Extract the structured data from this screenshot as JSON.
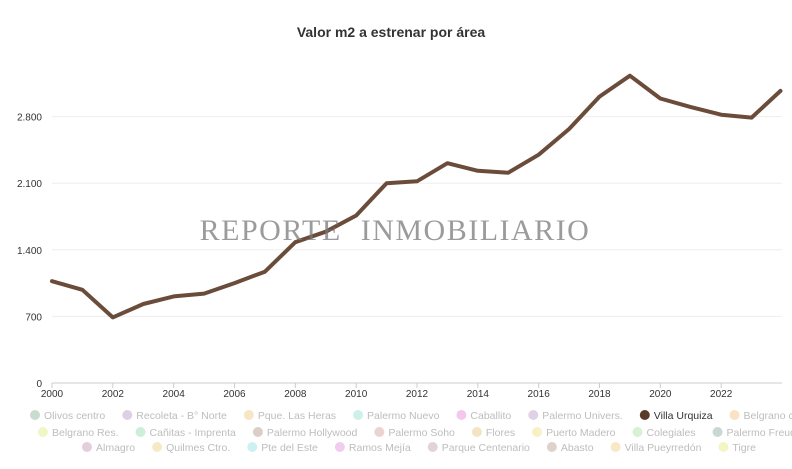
{
  "watermark": {
    "word1": "REPORTE",
    "word2": "INMOBILIARIO"
  },
  "chart_data": {
    "type": "line",
    "title": "Valor m2 a estrenar por área",
    "xlabel": "",
    "ylabel": "",
    "x": [
      2000,
      2001,
      2002,
      2003,
      2004,
      2005,
      2006,
      2007,
      2008,
      2009,
      2010,
      2011,
      2012,
      2013,
      2014,
      2015,
      2016,
      2017,
      2018,
      2019,
      2020,
      2021,
      2022,
      2023,
      2023.95
    ],
    "xlim": [
      2000,
      2024
    ],
    "xticks": [
      2000,
      2002,
      2004,
      2006,
      2008,
      2010,
      2012,
      2014,
      2016,
      2018,
      2020,
      2022
    ],
    "ylim": [
      0,
      3500
    ],
    "yticks": [
      0,
      700,
      1400,
      2100,
      2800
    ],
    "ytick_labels": [
      "0",
      "700",
      "1.400",
      "2.100",
      "2.800"
    ],
    "grid": "horizontal",
    "series": [
      {
        "name": "Villa Urquiza",
        "color": "#6b4c3b",
        "values": [
          1070,
          980,
          690,
          830,
          910,
          940,
          1050,
          1170,
          1480,
          1590,
          1760,
          2100,
          2120,
          2310,
          2230,
          2210,
          2400,
          2670,
          3010,
          3230,
          2990,
          2900,
          2820,
          2790,
          3070
        ]
      }
    ],
    "legend": {
      "placement": "bottom",
      "items": [
        {
          "name": "Olivos centro",
          "color": "#c9dccf"
        },
        {
          "name": "Recoleta - B° Norte",
          "color": "#ddd0e4"
        },
        {
          "name": "Pque. Las Heras",
          "color": "#f6e6c5"
        },
        {
          "name": "Palermo Nuevo",
          "color": "#cdf1e9"
        },
        {
          "name": "Caballito",
          "color": "#f4c8ec"
        },
        {
          "name": "Palermo Univers.",
          "color": "#e0d2e6"
        },
        {
          "name": "Villa Urquiza",
          "color": "#5a3a28",
          "active": true
        },
        {
          "name": "Belgrano ctro.",
          "color": "#f9e3c4"
        },
        {
          "name": "Belgrano Res.",
          "color": "#f0f6c6"
        },
        {
          "name": "Cañitas - Imprenta",
          "color": "#cdeed9"
        },
        {
          "name": "Palermo Hollywood",
          "color": "#dccdc6"
        },
        {
          "name": "Palermo Soho",
          "color": "#ead4d1"
        },
        {
          "name": "Flores",
          "color": "#f5e4c4"
        },
        {
          "name": "Puerto Madero",
          "color": "#f7f1c3"
        },
        {
          "name": "Colegiales",
          "color": "#d8f0d6"
        },
        {
          "name": "Palermo Freud",
          "color": "#c9d8d2"
        },
        {
          "name": "Almagro",
          "color": "#e3cedb"
        },
        {
          "name": "Quilmes Ctro.",
          "color": "#f6eac6"
        },
        {
          "name": "Pte del Este",
          "color": "#cdf1f1"
        },
        {
          "name": "Ramos Mejía",
          "color": "#f0cdf0"
        },
        {
          "name": "Parque Centenario",
          "color": "#e2d2dc"
        },
        {
          "name": "Abasto",
          "color": "#ddd3cd"
        },
        {
          "name": "Villa Pueyrredón",
          "color": "#f9e7c8"
        },
        {
          "name": "Tigre",
          "color": "#f3f5c3"
        }
      ]
    }
  }
}
